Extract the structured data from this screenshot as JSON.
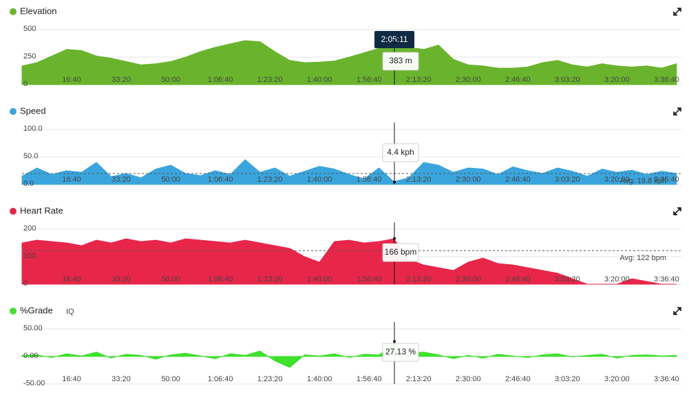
{
  "chart_data": [
    {
      "type": "area",
      "title": "Elevation",
      "color": "#6ab42d",
      "x": [
        0,
        300,
        600,
        900,
        1200,
        1500,
        1800,
        2100,
        2400,
        2700,
        3000,
        3300,
        3600,
        3900,
        4200,
        4500,
        4800,
        5100,
        5400,
        5700,
        6000,
        6300,
        6600,
        6900,
        7200,
        7500,
        7800,
        8100,
        8400,
        8700,
        9000,
        9300,
        9600,
        9900,
        10200,
        10500,
        10800,
        11100,
        11400,
        11700,
        12000,
        12300,
        12600,
        12900,
        13200
      ],
      "values": [
        170,
        200,
        260,
        320,
        310,
        260,
        240,
        210,
        180,
        190,
        210,
        250,
        300,
        340,
        370,
        400,
        390,
        300,
        220,
        200,
        205,
        215,
        250,
        290,
        330,
        380,
        340,
        320,
        360,
        230,
        180,
        170,
        150,
        150,
        160,
        200,
        220,
        180,
        160,
        190,
        170,
        160,
        170,
        150,
        190
      ],
      "xlim": [
        0,
        13300
      ],
      "xticks": [
        {
          "value": 1000,
          "label": "16:40"
        },
        {
          "value": 2000,
          "label": "33:20"
        },
        {
          "value": 3000,
          "label": "50:00"
        },
        {
          "value": 4000,
          "label": "1:06:40"
        },
        {
          "value": 5000,
          "label": "1:23:20"
        },
        {
          "value": 6000,
          "label": "1:40:00"
        },
        {
          "value": 7000,
          "label": "1:56:40"
        },
        {
          "value": 8000,
          "label": "2:13:20"
        },
        {
          "value": 9000,
          "label": "2:30:00"
        },
        {
          "value": 10000,
          "label": "2:46:40"
        },
        {
          "value": 11000,
          "label": "3:03:20"
        },
        {
          "value": 12000,
          "label": "3:20:00"
        },
        {
          "value": 13000,
          "label": "3:36:40"
        }
      ],
      "ylim": [
        0,
        500
      ],
      "yticks": [
        0,
        250,
        500
      ],
      "grid": true,
      "cursor": {
        "value": 7511,
        "label": "2:05:11"
      },
      "tooltip": {
        "value": 383,
        "label": "383 m"
      }
    },
    {
      "type": "area",
      "title": "Speed",
      "color": "#3aa5dd",
      "x": [
        0,
        300,
        600,
        900,
        1200,
        1500,
        1800,
        2100,
        2400,
        2700,
        3000,
        3300,
        3600,
        3900,
        4200,
        4500,
        4800,
        5100,
        5400,
        5700,
        6000,
        6300,
        6600,
        6900,
        7200,
        7500,
        7800,
        8100,
        8400,
        8700,
        9000,
        9300,
        9600,
        9900,
        10200,
        10500,
        10800,
        11100,
        11400,
        11700,
        12000,
        12300,
        12600,
        12900,
        13200
      ],
      "values": [
        15,
        30,
        18,
        25,
        22,
        40,
        14,
        20,
        12,
        28,
        35,
        20,
        16,
        25,
        18,
        45,
        22,
        30,
        15,
        24,
        33,
        28,
        18,
        10,
        30,
        5,
        12,
        40,
        35,
        22,
        30,
        28,
        18,
        32,
        25,
        20,
        30,
        24,
        15,
        28,
        22,
        26,
        18,
        24,
        20
      ],
      "xlim": [
        0,
        13300
      ],
      "xticks": [
        {
          "value": 1000,
          "label": "16:40"
        },
        {
          "value": 2000,
          "label": "33:20"
        },
        {
          "value": 3000,
          "label": "50:00"
        },
        {
          "value": 4000,
          "label": "1:06:40"
        },
        {
          "value": 5000,
          "label": "1:23:20"
        },
        {
          "value": 6000,
          "label": "1:40:00"
        },
        {
          "value": 7000,
          "label": "1:56:40"
        },
        {
          "value": 8000,
          "label": "2:13:20"
        },
        {
          "value": 9000,
          "label": "2:30:00"
        },
        {
          "value": 10000,
          "label": "2:46:40"
        },
        {
          "value": 11000,
          "label": "3:03:20"
        },
        {
          "value": 12000,
          "label": "3:20:00"
        },
        {
          "value": 13000,
          "label": "3:36:40"
        }
      ],
      "ylim": [
        0,
        100
      ],
      "yticks": [
        {
          "value": 0,
          "label": "0.0"
        },
        {
          "value": 50,
          "label": "50.0"
        },
        {
          "value": 100,
          "label": "100.0"
        }
      ],
      "grid": true,
      "average": {
        "value": 19.8,
        "label": "Avg: 19.8 kph"
      },
      "tooltip": {
        "value": 4.4,
        "label": "4.4 kph"
      }
    },
    {
      "type": "area",
      "title": "Heart Rate",
      "color": "#e8264a",
      "x": [
        0,
        300,
        600,
        900,
        1200,
        1500,
        1800,
        2100,
        2400,
        2700,
        3000,
        3300,
        3600,
        3900,
        4200,
        4500,
        4800,
        5100,
        5400,
        5700,
        6000,
        6300,
        6600,
        6900,
        7200,
        7500,
        7800,
        8100,
        8400,
        8700,
        9000,
        9300,
        9600,
        9900,
        10200,
        10500,
        10800,
        11100,
        11400,
        11700,
        12000,
        12300,
        12600,
        12900,
        13200
      ],
      "values": [
        150,
        160,
        155,
        150,
        140,
        160,
        150,
        165,
        155,
        160,
        150,
        165,
        160,
        155,
        150,
        160,
        150,
        140,
        130,
        100,
        80,
        155,
        160,
        150,
        155,
        165,
        90,
        70,
        60,
        50,
        80,
        95,
        75,
        70,
        60,
        50,
        40,
        20,
        0,
        0,
        0,
        20,
        10,
        0,
        0
      ],
      "xlim": [
        0,
        13300
      ],
      "xticks": [
        {
          "value": 1000,
          "label": "16:40"
        },
        {
          "value": 2000,
          "label": "33:20"
        },
        {
          "value": 3000,
          "label": "50:00"
        },
        {
          "value": 4000,
          "label": "1:06:40"
        },
        {
          "value": 5000,
          "label": "1:23:20"
        },
        {
          "value": 6000,
          "label": "1:40:00"
        },
        {
          "value": 7000,
          "label": "1:56:40"
        },
        {
          "value": 8000,
          "label": "2:13:20"
        },
        {
          "value": 9000,
          "label": "2:30:00"
        },
        {
          "value": 10000,
          "label": "2:46:40"
        },
        {
          "value": 11000,
          "label": "3:03:20"
        },
        {
          "value": 12000,
          "label": "3:20:00"
        },
        {
          "value": 13000,
          "label": "3:36:40"
        }
      ],
      "ylim": [
        0,
        200
      ],
      "yticks": [
        0,
        100,
        200
      ],
      "grid": true,
      "average": {
        "value": 122,
        "label": "Avg: 122 bpm"
      },
      "tooltip": {
        "value": 166,
        "label": "166 bpm"
      }
    },
    {
      "type": "area",
      "title": "%Grade",
      "badge": "IQ",
      "color": "#40e02d",
      "x": [
        0,
        300,
        600,
        900,
        1200,
        1500,
        1800,
        2100,
        2400,
        2700,
        3000,
        3300,
        3600,
        3900,
        4200,
        4500,
        4800,
        5100,
        5400,
        5700,
        6000,
        6300,
        6600,
        6900,
        7200,
        7500,
        7800,
        8100,
        8400,
        8700,
        9000,
        9300,
        9600,
        9900,
        10200,
        10500,
        10800,
        11100,
        11400,
        11700,
        12000,
        12300,
        12600,
        12900,
        13200
      ],
      "values": [
        2,
        3,
        -2,
        5,
        1,
        8,
        -3,
        4,
        2,
        -5,
        3,
        6,
        1,
        -4,
        5,
        2,
        10,
        -8,
        -20,
        3,
        1,
        5,
        -2,
        4,
        3,
        20,
        6,
        8,
        3,
        -4,
        2,
        -3,
        4,
        1,
        -2,
        3,
        5,
        -1,
        2,
        4,
        -3,
        2,
        3,
        1,
        2
      ],
      "xlim": [
        0,
        13300
      ],
      "xticks": [
        {
          "value": 1000,
          "label": "16:40"
        },
        {
          "value": 2000,
          "label": "33:20"
        },
        {
          "value": 3000,
          "label": "50:00"
        },
        {
          "value": 4000,
          "label": "1:06:40"
        },
        {
          "value": 5000,
          "label": "1:23:20"
        },
        {
          "value": 6000,
          "label": "1:40:00"
        },
        {
          "value": 7000,
          "label": "1:56:40"
        },
        {
          "value": 8000,
          "label": "2:13:20"
        },
        {
          "value": 9000,
          "label": "2:30:00"
        },
        {
          "value": 10000,
          "label": "2:46:40"
        },
        {
          "value": 11000,
          "label": "3:03:20"
        },
        {
          "value": 12000,
          "label": "3:20:00"
        },
        {
          "value": 13000,
          "label": "3:36:40"
        }
      ],
      "ylim": [
        -50,
        50
      ],
      "yticks": [
        {
          "value": -50,
          "label": "-50.00"
        },
        {
          "value": 0,
          "label": "0.00"
        },
        {
          "value": 50,
          "label": "50.00"
        }
      ],
      "grid": true,
      "tooltip": {
        "value": 27.13,
        "label": "27.13 %"
      }
    }
  ]
}
